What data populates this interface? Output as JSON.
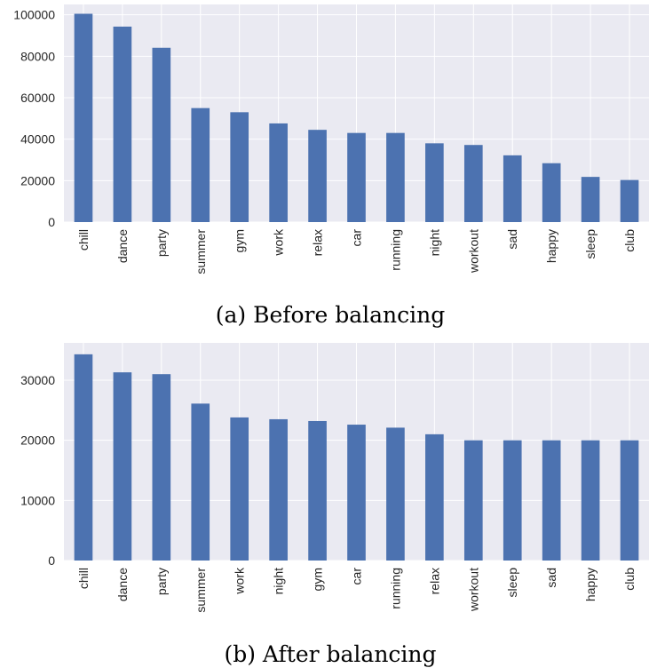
{
  "chart_data": [
    {
      "type": "bar",
      "caption": "(a) Before balancing",
      "categories": [
        "chill",
        "dance",
        "party",
        "summer",
        "gym",
        "work",
        "relax",
        "car",
        "running",
        "night",
        "workout",
        "sad",
        "happy",
        "sleep",
        "club"
      ],
      "values": [
        100500,
        94300,
        84100,
        55000,
        53000,
        47600,
        44500,
        43000,
        43000,
        38000,
        37200,
        32200,
        28400,
        21800,
        20300
      ],
      "ylim": [
        0,
        105000
      ],
      "yticks": [
        0,
        20000,
        40000,
        60000,
        80000,
        100000
      ],
      "grid": true,
      "bar_color": "#4c72b0",
      "background": "#eaeaf2"
    },
    {
      "type": "bar",
      "caption": "(b) After balancing",
      "categories": [
        "chill",
        "dance",
        "party",
        "summer",
        "work",
        "night",
        "gym",
        "car",
        "running",
        "relax",
        "workout",
        "sleep",
        "sad",
        "happy",
        "club"
      ],
      "values": [
        34300,
        31300,
        31000,
        26100,
        23800,
        23500,
        23200,
        22600,
        22100,
        21000,
        20000,
        20000,
        20000,
        20000,
        20000
      ],
      "ylim": [
        0,
        36200
      ],
      "yticks": [
        0,
        10000,
        20000,
        30000
      ],
      "grid": true,
      "bar_color": "#4c72b0",
      "background": "#eaeaf2"
    }
  ]
}
